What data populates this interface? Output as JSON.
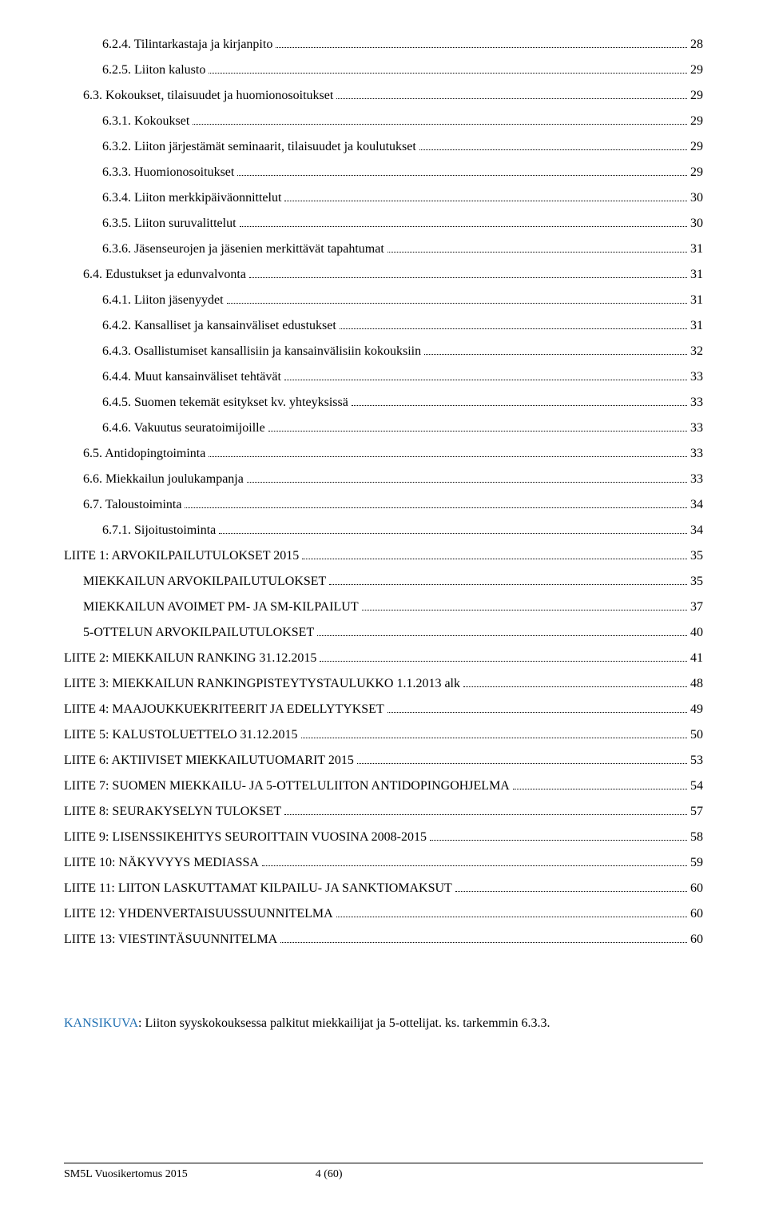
{
  "toc": [
    {
      "indent": 2,
      "label": "6.2.4. Tilintarkastaja ja kirjanpito",
      "page": "28"
    },
    {
      "indent": 2,
      "label": "6.2.5. Liiton kalusto",
      "page": "29"
    },
    {
      "indent": 1,
      "label": "6.3. Kokoukset, tilaisuudet ja huomionosoitukset",
      "page": "29"
    },
    {
      "indent": 2,
      "label": "6.3.1. Kokoukset",
      "page": "29"
    },
    {
      "indent": 2,
      "label": "6.3.2. Liiton järjestämät seminaarit, tilaisuudet ja koulutukset",
      "page": "29"
    },
    {
      "indent": 2,
      "label": "6.3.3. Huomionosoitukset",
      "page": "29"
    },
    {
      "indent": 2,
      "label": "6.3.4. Liiton merkkipäiväonnittelut",
      "page": "30"
    },
    {
      "indent": 2,
      "label": "6.3.5. Liiton suruvalittelut",
      "page": "30"
    },
    {
      "indent": 2,
      "label": "6.3.6. Jäsenseurojen ja jäsenien merkittävät tapahtumat",
      "page": "31"
    },
    {
      "indent": 1,
      "label": "6.4. Edustukset ja edunvalvonta",
      "page": "31"
    },
    {
      "indent": 2,
      "label": "6.4.1. Liiton jäsenyydet",
      "page": "31"
    },
    {
      "indent": 2,
      "label": "6.4.2. Kansalliset ja kansainväliset edustukset",
      "page": "31"
    },
    {
      "indent": 2,
      "label": "6.4.3. Osallistumiset kansallisiin ja kansainvälisiin kokouksiin",
      "page": "32"
    },
    {
      "indent": 2,
      "label": "6.4.4. Muut kansainväliset tehtävät",
      "page": "33"
    },
    {
      "indent": 2,
      "label": "6.4.5. Suomen tekemät esitykset kv. yhteyksissä",
      "page": "33"
    },
    {
      "indent": 2,
      "label": "6.4.6. Vakuutus seuratoimijoille",
      "page": "33"
    },
    {
      "indent": 1,
      "label": "6.5. Antidopingtoiminta",
      "page": "33"
    },
    {
      "indent": 1,
      "label": "6.6. Miekkailun joulukampanja",
      "page": "33"
    },
    {
      "indent": 1,
      "label": "6.7. Taloustoiminta",
      "page": "34"
    },
    {
      "indent": 2,
      "label": "6.7.1. Sijoitustoiminta",
      "page": "34"
    },
    {
      "indent": 0,
      "label": "LIITE 1: ARVOKILPAILUTULOKSET 2015",
      "page": "35"
    },
    {
      "indent": 1,
      "label": "MIEKKAILUN ARVOKILPAILUTULOKSET",
      "page": "35"
    },
    {
      "indent": 1,
      "label": "MIEKKAILUN AVOIMET PM- JA SM-KILPAILUT",
      "page": "37"
    },
    {
      "indent": 1,
      "label": "5-OTTELUN ARVOKILPAILUTULOKSET",
      "page": "40"
    },
    {
      "indent": 0,
      "label": "LIITE 2: MIEKKAILUN RANKING 31.12.2015",
      "page": "41"
    },
    {
      "indent": 0,
      "label": "LIITE 3: MIEKKAILUN RANKINGPISTEYTYSTAULUKKO 1.1.2013 alk",
      "page": "48"
    },
    {
      "indent": 0,
      "label": "LIITE 4: MAAJOUKKUEKRITEERIT JA EDELLYTYKSET",
      "page": "49"
    },
    {
      "indent": 0,
      "label": "LIITE 5: KALUSTOLUETTELO 31.12.2015",
      "page": "50"
    },
    {
      "indent": 0,
      "label": "LIITE 6: AKTIIVISET MIEKKAILUTUOMARIT 2015",
      "page": "53"
    },
    {
      "indent": 0,
      "label": "LIITE 7: SUOMEN MIEKKAILU- JA 5-OTTELULIITON ANTIDOPINGOHJELMA",
      "page": "54"
    },
    {
      "indent": 0,
      "label": "LIITE 8: SEURAKYSELYN TULOKSET",
      "page": "57"
    },
    {
      "indent": 0,
      "label": "LIITE 9: LISENSSIKEHITYS SEUROITTAIN VUOSINA 2008-2015",
      "page": "58"
    },
    {
      "indent": 0,
      "label": "LIITE 10: NÄKYVYYS MEDIASSA",
      "page": "59"
    },
    {
      "indent": 0,
      "label": "LIITE 11: LIITON LASKUTTAMAT KILPAILU- JA SANKTIOMAKSUT",
      "page": "60"
    },
    {
      "indent": 0,
      "label": "LIITE 12: YHDENVERTAISUUSSUUNNITELMA",
      "page": "60"
    },
    {
      "indent": 0,
      "label": "LIITE 13: VIESTINTÄSUUNNITELMA",
      "page": "60"
    }
  ],
  "note": {
    "prefix": "KANSIKUVA",
    "text": ": Liiton syyskokouksessa palkitut miekkailijat ja 5-ottelijat. ks. tarkemmin 6.3.3."
  },
  "footer": {
    "left": "SM5L Vuosikertomus 2015",
    "center": "4 (60)"
  },
  "colors": {
    "link_blue": "#1f6fb2",
    "text": "#000000",
    "background": "#ffffff"
  }
}
